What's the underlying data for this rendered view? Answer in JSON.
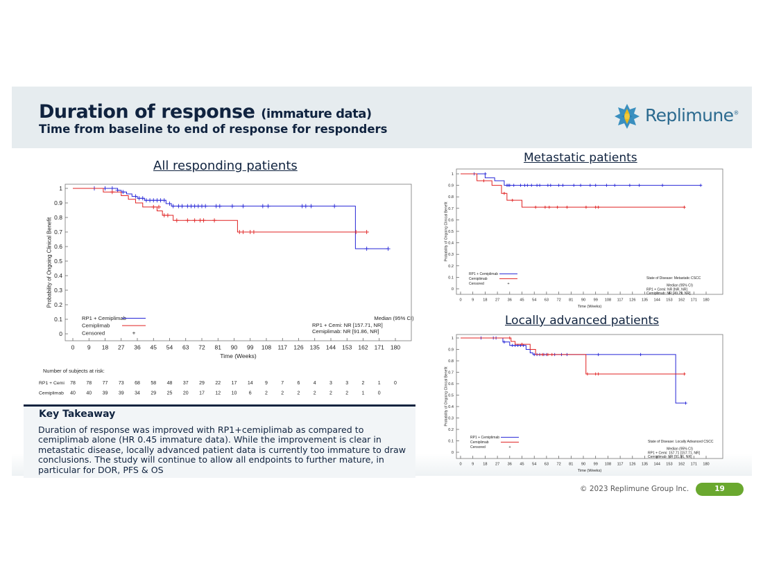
{
  "header": {
    "title": "Duration of response",
    "title_suffix": "(immature data)",
    "subtitle": "Time from baseline to end of response for responders",
    "logo_text": "Replimune",
    "logo_mark": "®"
  },
  "colors": {
    "rp1": "#2424d6",
    "cemi": "#e02020",
    "navy": "#10233f",
    "accent": "#6aa82f"
  },
  "charts": {
    "all": {
      "title": "All responding patients",
      "ylabel": "Probability of Ongoing Clinical Benefit",
      "xlabel": "Time (Weeks)",
      "legend": [
        "RP1 + Cemiplimab",
        "Cemiplimab",
        "Censored"
      ],
      "censor_symbol": "+",
      "median_title": "Median (95% CI)",
      "median_rp1": "RP1 + Cemi: NR [157.71, NR]",
      "median_cemi": "Cemiplimab: NR [91.86, NR]",
      "risk_title": "Number of subjects at risk:",
      "risk_labels": [
        "RP1 + Cemi",
        "Cemiplimab"
      ]
    },
    "met": {
      "title": "Metastatic patients",
      "ylabel": "Probability of Ongoing Clinical Benefit",
      "xlabel": "Time (Weeks)",
      "legend": [
        "RP1 + Cemiplimab",
        "Cemiplimab",
        "Censored"
      ],
      "censor_symbol": "+",
      "state": "State of Disease: Metastatic CSCC",
      "median_title": "Median (95% CI)",
      "median_rp1": "RP1 + Cemi: NR [NR, NR]",
      "median_cemi": "Cemiplimab: NR [49.29, NR]"
    },
    "loc": {
      "title": "Locally advanced patients",
      "ylabel": "Probability of Ongoing Clinical Benefit",
      "xlabel": "Time (Weeks)",
      "legend": [
        "RP1 + Cemiplimab",
        "Cemiplimab",
        "Censored"
      ],
      "censor_symbol": "+",
      "state": "State of Disease: Locally Advanced CSCC",
      "median_title": "Median (95% CI)",
      "median_rp1": "RP1 + Cemi: 157.71 [157.71, NR]",
      "median_cemi": "Cemiplimab: NR [91.86, NR]"
    }
  },
  "takeaway": {
    "heading": "Key Takeaway",
    "body": "Duration of response was improved with RP1+cemiplimab as compared to cemiplimab alone (HR 0.45 immature data). While the improvement is clear in metastatic disease, locally advanced patient data is currently too immature to draw conclusions. The study will continue to allow all endpoints to further mature, in particular for DOR, PFS & OS"
  },
  "footer": {
    "copyright": "© 2023 Replimune Group Inc.",
    "page": "19"
  },
  "chart_data": [
    {
      "type": "line",
      "title": "All responding patients",
      "xlabel": "Time (Weeks)",
      "ylabel": "Probability of Ongoing Clinical Benefit",
      "xlim": [
        0,
        180
      ],
      "ylim": [
        0,
        1
      ],
      "xticks": [
        0,
        9,
        18,
        27,
        36,
        45,
        54,
        63,
        72,
        81,
        90,
        99,
        108,
        117,
        126,
        135,
        144,
        153,
        162,
        171,
        180
      ],
      "yticks": [
        0,
        0.1,
        0.2,
        0.3,
        0.4,
        0.5,
        0.6,
        0.7,
        0.8,
        0.9,
        1
      ],
      "legend_position": "bottom-left",
      "series": [
        {
          "name": "RP1 + Cemiplimab",
          "steps": [
            [
              0,
              1
            ],
            [
              25,
              0.987
            ],
            [
              27,
              0.975
            ],
            [
              30,
              0.962
            ],
            [
              33,
              0.945
            ],
            [
              36,
              0.932
            ],
            [
              40,
              0.918
            ],
            [
              52,
              0.895
            ],
            [
              55,
              0.878
            ],
            [
              157.7,
              0.878
            ],
            [
              157.7,
              0.585
            ],
            [
              176,
              0.585
            ]
          ],
          "censored": [
            [
              12,
              1
            ],
            [
              18,
              1
            ],
            [
              22,
              1
            ],
            [
              25,
              0.987
            ],
            [
              28,
              0.975
            ],
            [
              35,
              0.945
            ],
            [
              37,
              0.932
            ],
            [
              39,
              0.932
            ],
            [
              41,
              0.918
            ],
            [
              43,
              0.918
            ],
            [
              45,
              0.918
            ],
            [
              47,
              0.918
            ],
            [
              49,
              0.918
            ],
            [
              51,
              0.918
            ],
            [
              54,
              0.895
            ],
            [
              56,
              0.878
            ],
            [
              59,
              0.878
            ],
            [
              61,
              0.878
            ],
            [
              64,
              0.878
            ],
            [
              66,
              0.878
            ],
            [
              68,
              0.878
            ],
            [
              70,
              0.878
            ],
            [
              72,
              0.878
            ],
            [
              74,
              0.878
            ],
            [
              80,
              0.878
            ],
            [
              82,
              0.878
            ],
            [
              89,
              0.878
            ],
            [
              95,
              0.878
            ],
            [
              106,
              0.878
            ],
            [
              109,
              0.878
            ],
            [
              128,
              0.878
            ],
            [
              130,
              0.878
            ],
            [
              133,
              0.878
            ],
            [
              146,
              0.878
            ],
            [
              164,
              0.585
            ],
            [
              176,
              0.585
            ]
          ]
        },
        {
          "name": "Cemiplimab",
          "steps": [
            [
              0,
              1
            ],
            [
              17,
              0.975
            ],
            [
              27,
              0.95
            ],
            [
              31,
              0.925
            ],
            [
              35,
              0.9
            ],
            [
              39,
              0.872
            ],
            [
              47,
              0.845
            ],
            [
              50,
              0.815
            ],
            [
              56,
              0.78
            ],
            [
              91.9,
              0.78
            ],
            [
              91.9,
              0.7
            ],
            [
              164,
              0.7
            ]
          ],
          "censored": [
            [
              22,
              0.975
            ],
            [
              45,
              0.872
            ],
            [
              48,
              0.872
            ],
            [
              51,
              0.815
            ],
            [
              53,
              0.815
            ],
            [
              58,
              0.78
            ],
            [
              64,
              0.78
            ],
            [
              68,
              0.78
            ],
            [
              71,
              0.78
            ],
            [
              73,
              0.78
            ],
            [
              79,
              0.78
            ],
            [
              93,
              0.7
            ],
            [
              95,
              0.7
            ],
            [
              99,
              0.7
            ],
            [
              101,
              0.7
            ],
            [
              158,
              0.7
            ],
            [
              164,
              0.7
            ]
          ]
        }
      ],
      "risk_table": {
        "times": [
          0,
          9,
          18,
          27,
          36,
          45,
          54,
          63,
          72,
          81,
          90,
          99,
          108,
          117,
          126,
          135,
          144,
          153,
          162,
          171,
          180
        ],
        "RP1 + Cemi": [
          78,
          78,
          77,
          73,
          68,
          58,
          48,
          37,
          29,
          22,
          17,
          14,
          9,
          7,
          6,
          4,
          3,
          3,
          2,
          1,
          0
        ],
        "Cemiplimab": [
          40,
          40,
          39,
          39,
          34,
          29,
          25,
          20,
          17,
          12,
          10,
          6,
          2,
          2,
          2,
          2,
          2,
          2,
          1,
          0,
          null
        ]
      }
    },
    {
      "type": "line",
      "title": "Metastatic patients",
      "xlabel": "Time (Weeks)",
      "ylabel": "Probability of Ongoing Clinical Benefit",
      "xlim": [
        0,
        180
      ],
      "ylim": [
        0,
        1
      ],
      "xticks": [
        0,
        9,
        18,
        27,
        36,
        45,
        54,
        63,
        72,
        81,
        90,
        99,
        108,
        117,
        126,
        135,
        144,
        153,
        162,
        171,
        180
      ],
      "yticks": [
        0,
        0.1,
        0.2,
        0.3,
        0.4,
        0.5,
        0.6,
        0.7,
        0.8,
        0.9,
        1
      ],
      "legend_position": "bottom-left",
      "series": [
        {
          "name": "RP1 + Cemiplimab",
          "steps": [
            [
              0,
              1
            ],
            [
              18,
              0.965
            ],
            [
              25,
              0.94
            ],
            [
              32,
              0.9
            ],
            [
              176,
              0.9
            ]
          ],
          "censored": [
            [
              10,
              1
            ],
            [
              18,
              1
            ],
            [
              34,
              0.9
            ],
            [
              35,
              0.9
            ],
            [
              36,
              0.9
            ],
            [
              39,
              0.9
            ],
            [
              44,
              0.9
            ],
            [
              47,
              0.9
            ],
            [
              49,
              0.9
            ],
            [
              52,
              0.9
            ],
            [
              56,
              0.9
            ],
            [
              58,
              0.9
            ],
            [
              64,
              0.9
            ],
            [
              66,
              0.9
            ],
            [
              72,
              0.9
            ],
            [
              75,
              0.9
            ],
            [
              83,
              0.9
            ],
            [
              88,
              0.9
            ],
            [
              95,
              0.9
            ],
            [
              99,
              0.9
            ],
            [
              107,
              0.9
            ],
            [
              113,
              0.9
            ],
            [
              124,
              0.9
            ],
            [
              131,
              0.9
            ],
            [
              148,
              0.9
            ],
            [
              176,
              0.9
            ]
          ]
        },
        {
          "name": "Cemiplimab",
          "steps": [
            [
              0,
              1
            ],
            [
              12,
              0.94
            ],
            [
              23,
              0.9
            ],
            [
              30,
              0.83
            ],
            [
              34,
              0.77
            ],
            [
              45,
              0.71
            ],
            [
              164,
              0.71
            ]
          ],
          "censored": [
            [
              17,
              0.94
            ],
            [
              32,
              0.83
            ],
            [
              38,
              0.77
            ],
            [
              55,
              0.71
            ],
            [
              62,
              0.71
            ],
            [
              65,
              0.71
            ],
            [
              71,
              0.71
            ],
            [
              78,
              0.71
            ],
            [
              92,
              0.71
            ],
            [
              99,
              0.71
            ],
            [
              101,
              0.71
            ],
            [
              164,
              0.71
            ]
          ]
        }
      ]
    },
    {
      "type": "line",
      "title": "Locally advanced patients",
      "xlabel": "Time (Weeks)",
      "ylabel": "Probability of Ongoing Clinical Benefit",
      "xlim": [
        0,
        180
      ],
      "ylim": [
        0,
        1
      ],
      "xticks": [
        0,
        9,
        18,
        27,
        36,
        45,
        54,
        63,
        72,
        81,
        90,
        99,
        108,
        117,
        126,
        135,
        144,
        153,
        162,
        171,
        180
      ],
      "yticks": [
        0,
        0.1,
        0.2,
        0.3,
        0.4,
        0.5,
        0.6,
        0.7,
        0.8,
        0.9,
        1
      ],
      "legend_position": "bottom-left",
      "series": [
        {
          "name": "RP1 + Cemiplimab",
          "steps": [
            [
              0,
              1
            ],
            [
              31,
              0.965
            ],
            [
              36,
              0.935
            ],
            [
              48,
              0.9
            ],
            [
              51,
              0.87
            ],
            [
              53,
              0.855
            ],
            [
              157.7,
              0.855
            ],
            [
              157.7,
              0.43
            ],
            [
              165,
              0.43
            ]
          ],
          "censored": [
            [
              15,
              1
            ],
            [
              24,
              1
            ],
            [
              26,
              1
            ],
            [
              32,
              0.965
            ],
            [
              38,
              0.935
            ],
            [
              40,
              0.935
            ],
            [
              42,
              0.935
            ],
            [
              44,
              0.935
            ],
            [
              46,
              0.935
            ],
            [
              54,
              0.855
            ],
            [
              56,
              0.855
            ],
            [
              58,
              0.855
            ],
            [
              61,
              0.855
            ],
            [
              63,
              0.855
            ],
            [
              69,
              0.855
            ],
            [
              74,
              0.855
            ],
            [
              78,
              0.855
            ],
            [
              101,
              0.855
            ],
            [
              132,
              0.855
            ],
            [
              165,
              0.43
            ]
          ]
        },
        {
          "name": "Cemiplimab",
          "steps": [
            [
              0,
              1
            ],
            [
              37,
              0.97
            ],
            [
              40,
              0.945
            ],
            [
              51,
              0.9
            ],
            [
              55,
              0.855
            ],
            [
              91.9,
              0.855
            ],
            [
              91.9,
              0.685
            ],
            [
              164,
              0.685
            ]
          ],
          "censored": [
            [
              36,
              1
            ],
            [
              45,
              0.945
            ],
            [
              60,
              0.855
            ],
            [
              64,
              0.855
            ],
            [
              67,
              0.855
            ],
            [
              93,
              0.685
            ],
            [
              99,
              0.685
            ],
            [
              101,
              0.685
            ],
            [
              164,
              0.685
            ]
          ]
        }
      ]
    }
  ]
}
